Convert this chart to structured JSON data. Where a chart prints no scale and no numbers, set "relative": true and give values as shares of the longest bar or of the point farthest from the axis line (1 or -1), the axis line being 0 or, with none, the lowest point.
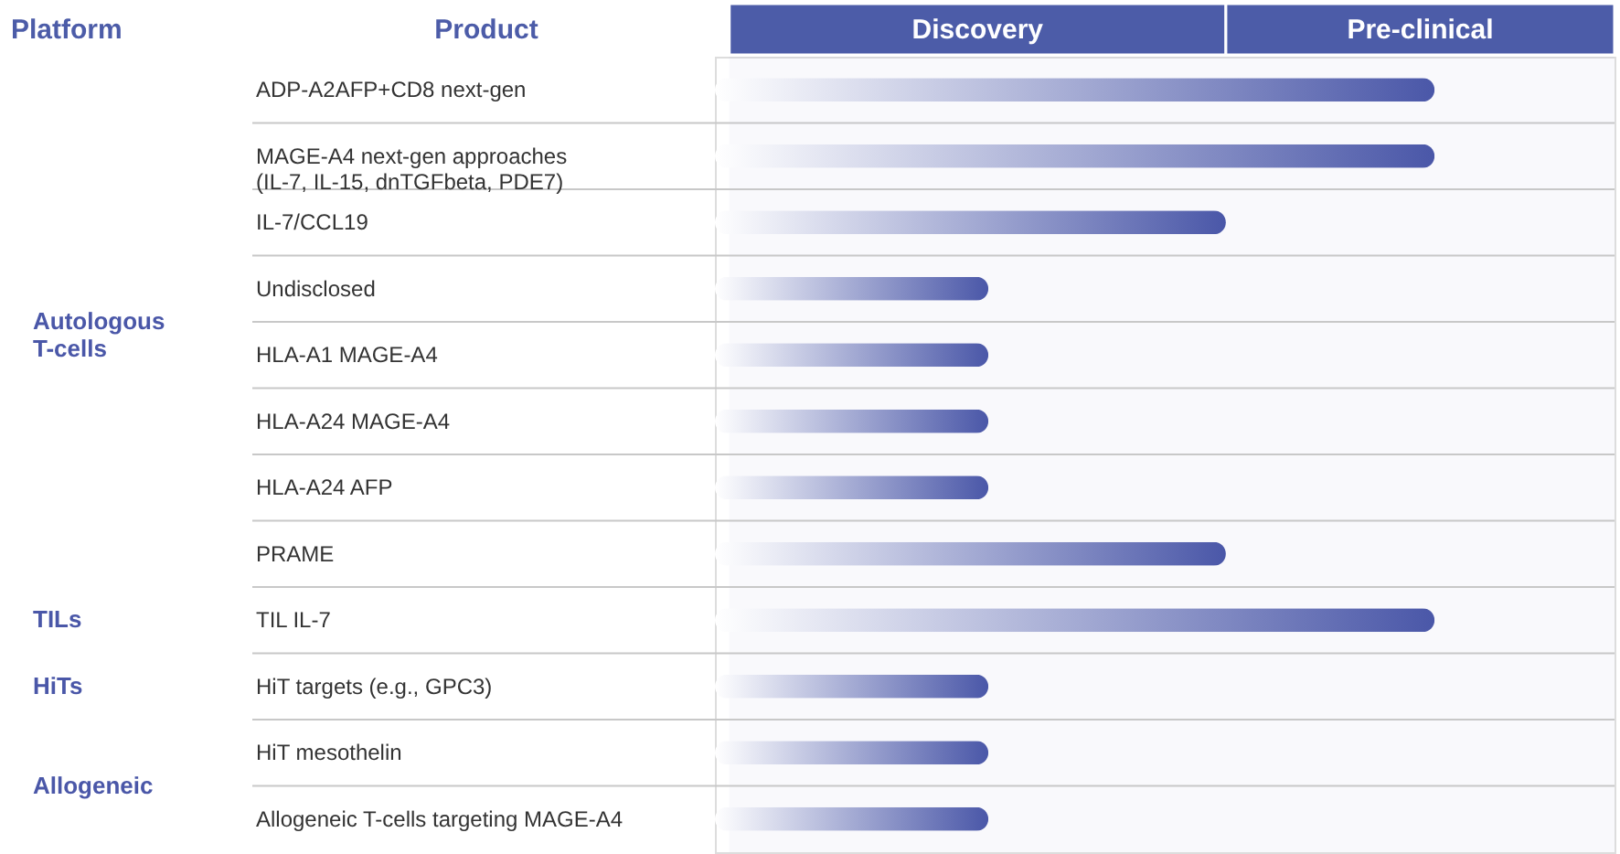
{
  "chart_data": {
    "type": "bar",
    "orientation": "horizontal",
    "relative": true,
    "ylabel": "Product",
    "categories": [
      "ADP-A2AFP+CD8 next-gen",
      "MAGE-A4 next-gen approaches\n(IL-7, IL-15, dnTGFbeta, PDE7)",
      "IL-7/CCL19",
      "Undisclosed",
      "HLA-A1 MAGE-A4",
      "HLA-A24 MAGE-A4",
      "HLA-A24 AFP",
      "PRAME",
      "TIL IL-7",
      "HiT targets (e.g., GPC3)",
      "HiT mesothelin",
      "Allogeneic T-cells targeting MAGE-A4"
    ],
    "series": [
      {
        "color": "#4a57a8",
        "values": [
          1,
          1,
          0.71,
          0.38,
          0.38,
          0.38,
          0.38,
          0.71,
          1,
          0.38,
          0.38,
          0.38
        ]
      }
    ],
    "bands": [
      {
        "axis": "x",
        "from": 0.02,
        "to": 0.71,
        "label": "Discovery",
        "color": "#4c5ca8"
      },
      {
        "axis": "x",
        "from": 0.71,
        "to": 1.25,
        "label": "Pre-clinical",
        "color": "#4c5ca8"
      }
    ],
    "annotations": [
      "Platform",
      "Autologous T-cells",
      "TILs",
      "HiTs",
      "Allogeneic"
    ],
    "grid": "y",
    "legend": false
  }
}
